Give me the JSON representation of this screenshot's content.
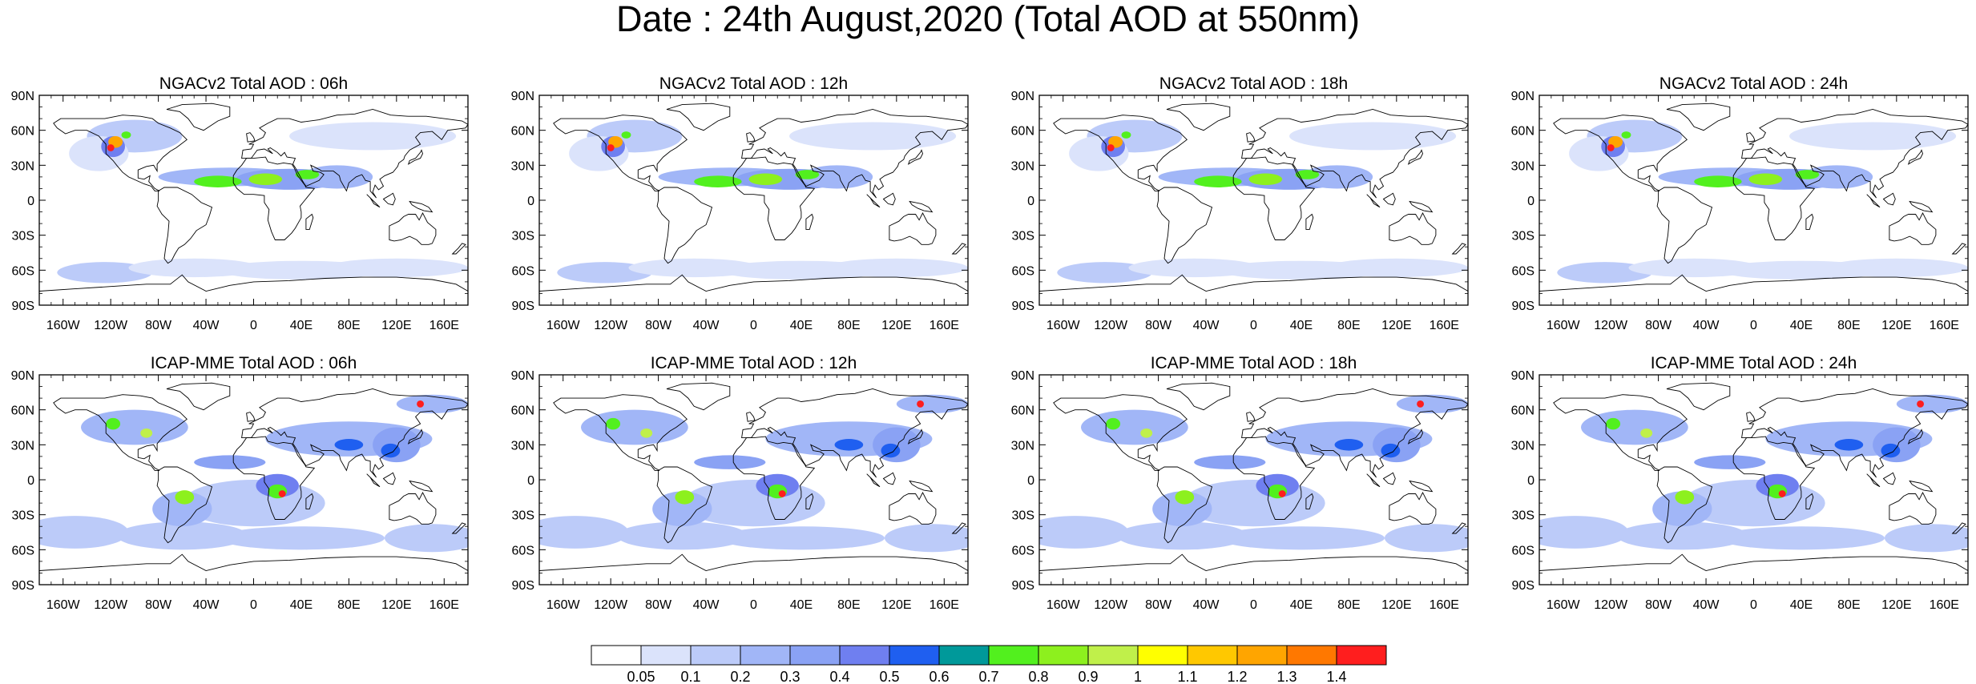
{
  "title": "Date : 24th August,2020 (Total AOD at 550nm)",
  "panels": [
    {
      "title": "NGACv2 Total AOD : 06h",
      "model": "NGACv2",
      "hour": "06h"
    },
    {
      "title": "NGACv2 Total AOD : 12h",
      "model": "NGACv2",
      "hour": "12h"
    },
    {
      "title": "NGACv2 Total AOD : 18h",
      "model": "NGACv2",
      "hour": "18h"
    },
    {
      "title": "NGACv2 Total AOD : 24h",
      "model": "NGACv2",
      "hour": "24h"
    },
    {
      "title": "ICAP-MME Total AOD : 06h",
      "model": "ICAP-MME",
      "hour": "06h"
    },
    {
      "title": "ICAP-MME Total AOD : 12h",
      "model": "ICAP-MME",
      "hour": "12h"
    },
    {
      "title": "ICAP-MME Total AOD : 18h",
      "model": "ICAP-MME",
      "hour": "18h"
    },
    {
      "title": "ICAP-MME Total AOD : 24h",
      "model": "ICAP-MME",
      "hour": "24h"
    }
  ],
  "lat_ticks": [
    "90N",
    "60N",
    "30N",
    "0",
    "30S",
    "60S",
    "90S"
  ],
  "lon_ticks": [
    "160W",
    "120W",
    "80W",
    "40W",
    "0",
    "40E",
    "80E",
    "120E",
    "160E"
  ],
  "colorbar": {
    "labels": [
      "0.05",
      "0.1",
      "0.2",
      "0.3",
      "0.4",
      "0.5",
      "0.6",
      "0.7",
      "0.8",
      "0.9",
      "1",
      "1.1",
      "1.2",
      "1.3",
      "1.4"
    ],
    "colors": [
      "#ffffff",
      "#dbe3fb",
      "#bccbf9",
      "#a1b6f7",
      "#8aa2f4",
      "#6f7ff0",
      "#1f5ff0",
      "#00999a",
      "#52f01e",
      "#8df01e",
      "#c0f04a",
      "#ffff00",
      "#ffc800",
      "#ffa500",
      "#ff7800",
      "#ff1e1e"
    ]
  }
}
